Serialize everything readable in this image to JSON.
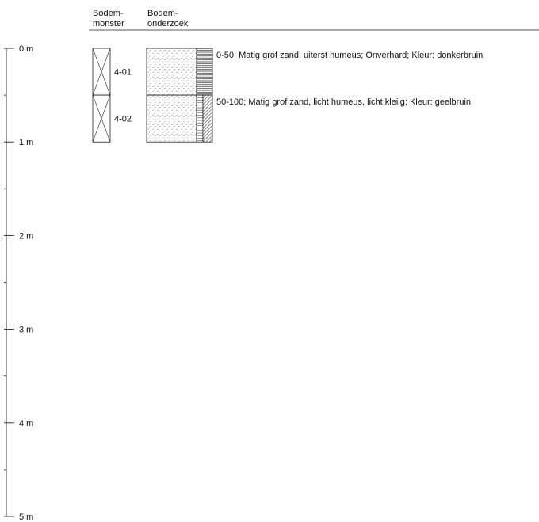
{
  "header": {
    "sample_column": [
      "Bodem-",
      "monster"
    ],
    "survey_column": [
      "Bodem-",
      "onderzoek"
    ]
  },
  "depth_axis": {
    "unit": "m",
    "max_depth_m": 5,
    "labels": [
      "0 m",
      "1 m",
      "2 m",
      "3 m",
      "4 m",
      "5 m"
    ],
    "minor_tick_interval_m": 0.5
  },
  "samples": [
    {
      "id": "4-01",
      "top_cm": 0,
      "bottom_cm": 50
    },
    {
      "id": "4-02",
      "top_cm": 50,
      "bottom_cm": 100
    }
  ],
  "layers": [
    {
      "top_cm": 0,
      "bottom_cm": 50,
      "description": "0-50; Matig grof zand, uiterst humeus; Onverhard; Kleur: donkerbruin",
      "soil": "zand",
      "humus": "uiterst humeus"
    },
    {
      "top_cm": 50,
      "bottom_cm": 100,
      "description": "50-100; Matig grof zand, licht humeus, licht kleiig; Kleur: geelbruin",
      "soil": "zand",
      "humus": "licht humeus",
      "clay": "licht kleiig"
    }
  ]
}
